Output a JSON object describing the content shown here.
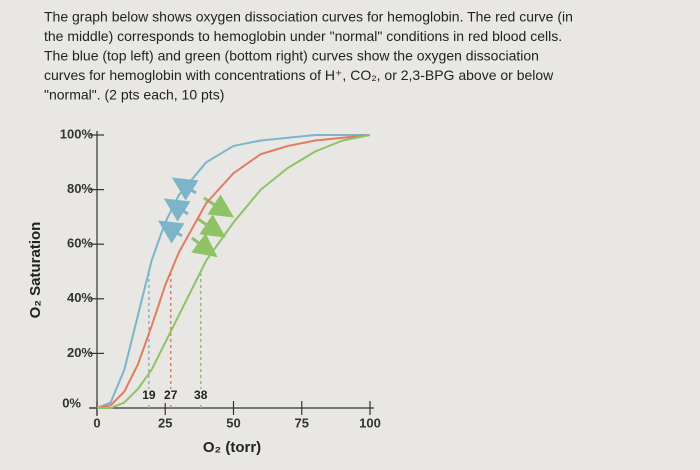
{
  "question": {
    "lines": [
      "The graph below shows oxygen dissociation curves for hemoglobin. The red curve (in",
      "the middle) corresponds to hemoglobin under \"normal\" conditions in red blood cells.",
      "The blue (top left) and green (bottom right) curves show the oxygen dissociation",
      "curves for hemoglobin with concentrations of H⁺, CO₂, or 2,3-BPG above or below",
      "\"normal\". (2 pts each, 10 pts)"
    ]
  },
  "chart_data": {
    "type": "line",
    "x_label": "O₂ (torr)",
    "y_label": "O₂ Saturation",
    "x": [
      0,
      5,
      10,
      15,
      20,
      25,
      30,
      40,
      50,
      60,
      70,
      80,
      90,
      100
    ],
    "series": [
      {
        "name": "blue",
        "color": "#7db4c9",
        "values": [
          0,
          2,
          14,
          34,
          54,
          68,
          78,
          90,
          96,
          98,
          99,
          100,
          100,
          100
        ]
      },
      {
        "name": "red",
        "color": "#e07c62",
        "values": [
          0,
          1,
          6,
          16,
          30,
          45,
          57,
          75,
          86,
          93,
          96,
          98,
          99,
          100
        ]
      },
      {
        "name": "green",
        "color": "#8fc266",
        "values": [
          0,
          0,
          2,
          7,
          14,
          24,
          34,
          54,
          68,
          80,
          88,
          94,
          98,
          100
        ]
      }
    ],
    "reference_lines": [
      {
        "x": 19,
        "color": "#7db4c9"
      },
      {
        "x": 27,
        "color": "#e07c62"
      },
      {
        "x": 38,
        "color": "#8fc266"
      }
    ],
    "xlim": [
      0,
      100
    ],
    "xticks": [
      0,
      25,
      50,
      75,
      100
    ],
    "ylim": [
      0,
      100
    ],
    "yticks": [
      {
        "value": 0,
        "label": "0%"
      },
      {
        "value": 20,
        "label": "20%"
      },
      {
        "value": 40,
        "label": "40%"
      },
      {
        "value": 60,
        "label": "60%"
      },
      {
        "value": 80,
        "label": "80%"
      },
      {
        "value": 100,
        "label": "100%"
      }
    ],
    "grid": false
  }
}
